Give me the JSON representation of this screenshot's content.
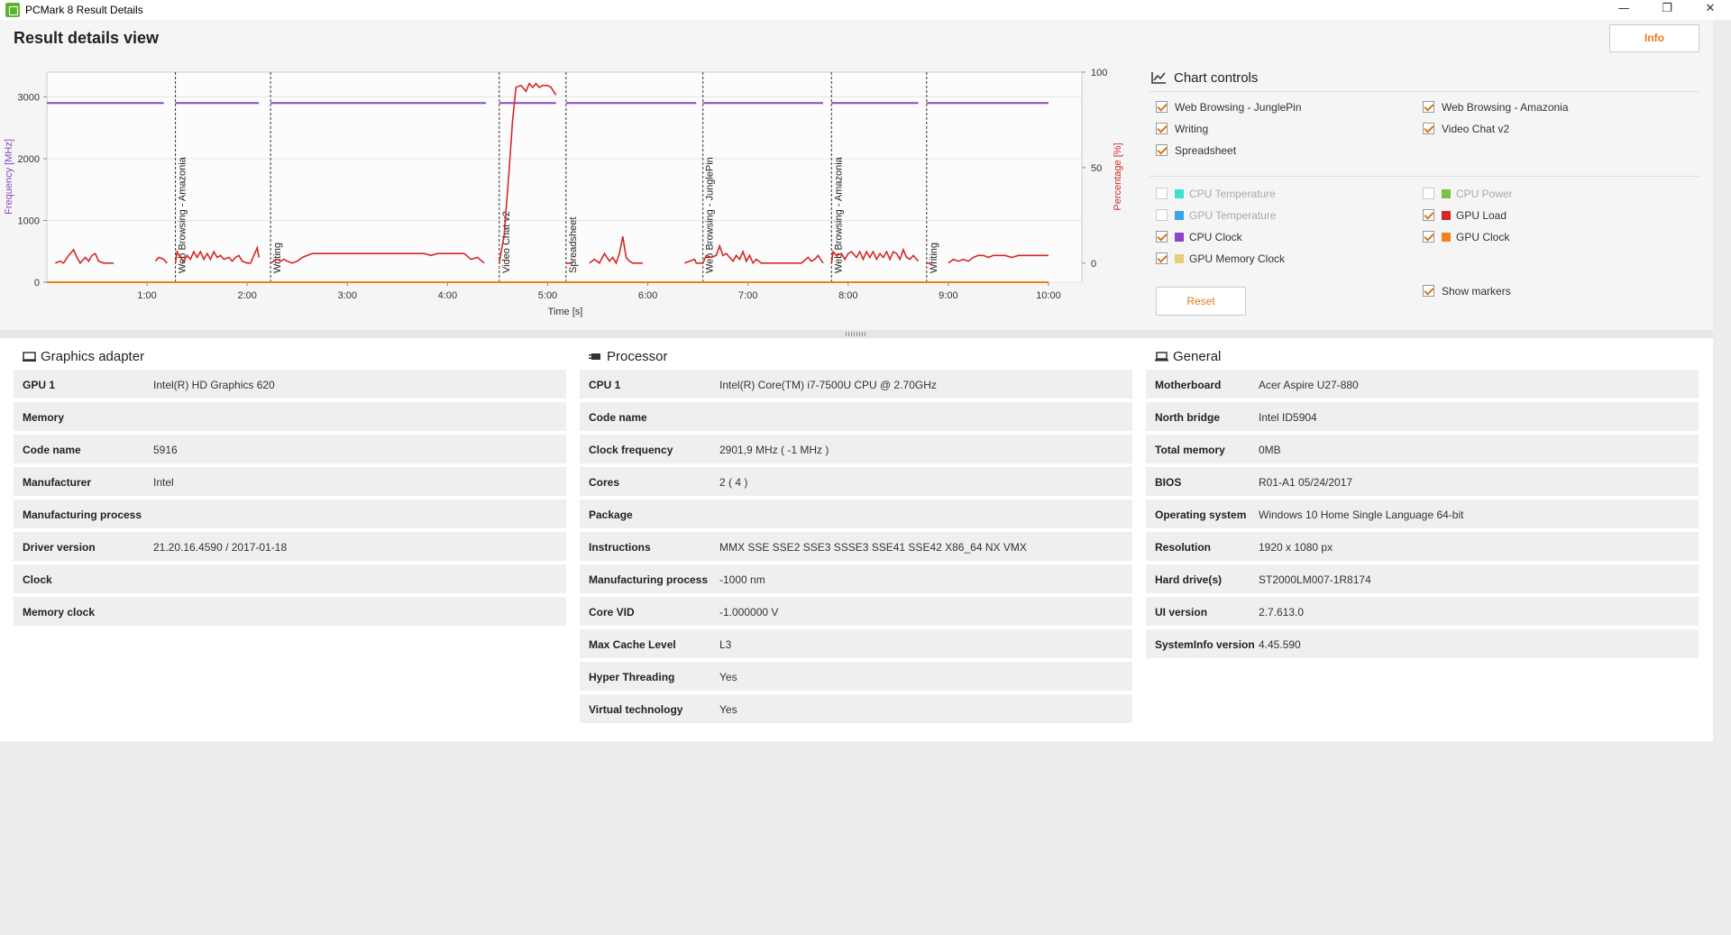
{
  "window": {
    "title": "PCMark 8 Result Details",
    "minimize_glyph": "—",
    "maximize_glyph": "❐",
    "close_glyph": "✕"
  },
  "header": {
    "title": "Result details view",
    "info_label": "Info"
  },
  "chart_data": {
    "type": "line",
    "xlabel": "Time [s]",
    "ylabel_left": "Frequency [MHz]",
    "ylabel_right": "Percentage [%]",
    "x_ticks": [
      "1:00",
      "2:00",
      "3:00",
      "4:00",
      "5:00",
      "6:00",
      "7:00",
      "8:00",
      "9:00",
      "10:00"
    ],
    "x_tick_seconds": [
      60,
      120,
      180,
      240,
      300,
      360,
      420,
      480,
      540,
      600
    ],
    "xlim_seconds": [
      0,
      620
    ],
    "y_left_ticks": [
      0,
      1000,
      2000,
      3000
    ],
    "y_left_lim": [
      0,
      3400
    ],
    "y_right_ticks": [
      0,
      50,
      100
    ],
    "y_right_lim": [
      -10,
      100
    ],
    "markers": [
      {
        "time_s": 77,
        "label": "Web Browsing - Amazonia"
      },
      {
        "time_s": 134,
        "label": "Writing"
      },
      {
        "time_s": 271,
        "label": "Video Chat v2"
      },
      {
        "time_s": 311,
        "label": "Spreadsheet"
      },
      {
        "time_s": 393,
        "label": "Web Browsing - JunglePin"
      },
      {
        "time_s": 470,
        "label": "Web Browsing - Amazonia"
      },
      {
        "time_s": 527,
        "label": "Writing"
      }
    ],
    "series": [
      {
        "name": "CPU Clock",
        "axis": "left",
        "color": "#8b44c8",
        "segments": [
          [
            0,
            70
          ],
          [
            77,
            127
          ],
          [
            134,
            263
          ],
          [
            271,
            305
          ],
          [
            311,
            389
          ],
          [
            393,
            465
          ],
          [
            470,
            522
          ],
          [
            527,
            600
          ]
        ],
        "value_mhz": 2900
      },
      {
        "name": "GPU Load",
        "axis": "right",
        "color": "#d42828",
        "points": [
          [
            0,
            0
          ],
          [
            5,
            0
          ],
          [
            8,
            1
          ],
          [
            10,
            0
          ],
          [
            13,
            4
          ],
          [
            16,
            7
          ],
          [
            18,
            3
          ],
          [
            20,
            0
          ],
          [
            23,
            3
          ],
          [
            25,
            1
          ],
          [
            27,
            4
          ],
          [
            29,
            5
          ],
          [
            31,
            1
          ],
          [
            34,
            0
          ],
          [
            37,
            0
          ],
          [
            40,
            0
          ],
          [
            45,
            0
          ],
          [
            50,
            0
          ],
          [
            55,
            0
          ],
          [
            60,
            0
          ],
          [
            65,
            1
          ],
          [
            67,
            3
          ],
          [
            70,
            2
          ],
          [
            72,
            0
          ],
          [
            77,
            0
          ],
          [
            78,
            6
          ],
          [
            80,
            3
          ],
          [
            82,
            1
          ],
          [
            84,
            4
          ],
          [
            86,
            2
          ],
          [
            88,
            6
          ],
          [
            90,
            3
          ],
          [
            92,
            6
          ],
          [
            94,
            2
          ],
          [
            96,
            5
          ],
          [
            98,
            2
          ],
          [
            100,
            6
          ],
          [
            102,
            3
          ],
          [
            104,
            4
          ],
          [
            106,
            2
          ],
          [
            109,
            3
          ],
          [
            111,
            1
          ],
          [
            113,
            3
          ],
          [
            115,
            4
          ],
          [
            117,
            1
          ],
          [
            120,
            0
          ],
          [
            122,
            0
          ],
          [
            124,
            4
          ],
          [
            126,
            8
          ],
          [
            127,
            3
          ],
          [
            134,
            0
          ],
          [
            136,
            1
          ],
          [
            138,
            2
          ],
          [
            140,
            1
          ],
          [
            142,
            2
          ],
          [
            144,
            1
          ],
          [
            147,
            0
          ],
          [
            150,
            1
          ],
          [
            153,
            3
          ],
          [
            156,
            4
          ],
          [
            159,
            5
          ],
          [
            162,
            5
          ],
          [
            166,
            5
          ],
          [
            170,
            5
          ],
          [
            174,
            5
          ],
          [
            178,
            5
          ],
          [
            182,
            5
          ],
          [
            186,
            5
          ],
          [
            190,
            5
          ],
          [
            194,
            5
          ],
          [
            198,
            5
          ],
          [
            202,
            5
          ],
          [
            206,
            5
          ],
          [
            210,
            5
          ],
          [
            214,
            5
          ],
          [
            218,
            5
          ],
          [
            222,
            5
          ],
          [
            226,
            5
          ],
          [
            230,
            4
          ],
          [
            234,
            5
          ],
          [
            238,
            5
          ],
          [
            242,
            5
          ],
          [
            246,
            5
          ],
          [
            250,
            5
          ],
          [
            254,
            2
          ],
          [
            258,
            3
          ],
          [
            262,
            0
          ],
          [
            271,
            0
          ],
          [
            274,
            15
          ],
          [
            277,
            50
          ],
          [
            279,
            75
          ],
          [
            281,
            92
          ],
          [
            284,
            93
          ],
          [
            287,
            90
          ],
          [
            289,
            94
          ],
          [
            291,
            92
          ],
          [
            293,
            94
          ],
          [
            295,
            92
          ],
          [
            297,
            93
          ],
          [
            300,
            93
          ],
          [
            302,
            92
          ],
          [
            305,
            88
          ],
          [
            311,
            0
          ],
          [
            315,
            0
          ],
          [
            320,
            0
          ],
          [
            325,
            0
          ],
          [
            328,
            2
          ],
          [
            331,
            0
          ],
          [
            334,
            5
          ],
          [
            337,
            1
          ],
          [
            339,
            3
          ],
          [
            341,
            0
          ],
          [
            343,
            5
          ],
          [
            345,
            14
          ],
          [
            347,
            3
          ],
          [
            349,
            1
          ],
          [
            351,
            0
          ],
          [
            353,
            0
          ],
          [
            357,
            0
          ],
          [
            362,
            0
          ],
          [
            367,
            0
          ],
          [
            372,
            0
          ],
          [
            377,
            0
          ],
          [
            382,
            0
          ],
          [
            385,
            1
          ],
          [
            388,
            2
          ],
          [
            389,
            0
          ],
          [
            393,
            0
          ],
          [
            395,
            4
          ],
          [
            398,
            3
          ],
          [
            401,
            4
          ],
          [
            403,
            9
          ],
          [
            405,
            4
          ],
          [
            407,
            5
          ],
          [
            409,
            3
          ],
          [
            411,
            1
          ],
          [
            413,
            4
          ],
          [
            415,
            2
          ],
          [
            417,
            6
          ],
          [
            419,
            1
          ],
          [
            421,
            4
          ],
          [
            423,
            0
          ],
          [
            425,
            2
          ],
          [
            428,
            0
          ],
          [
            432,
            0
          ],
          [
            436,
            0
          ],
          [
            440,
            0
          ],
          [
            444,
            0
          ],
          [
            448,
            0
          ],
          [
            452,
            0
          ],
          [
            456,
            3
          ],
          [
            458,
            1
          ],
          [
            460,
            2
          ],
          [
            462,
            4
          ],
          [
            465,
            0
          ],
          [
            470,
            0
          ],
          [
            471,
            6
          ],
          [
            473,
            4
          ],
          [
            476,
            5
          ],
          [
            478,
            2
          ],
          [
            480,
            5
          ],
          [
            482,
            6
          ],
          [
            485,
            3
          ],
          [
            487,
            6
          ],
          [
            489,
            2
          ],
          [
            491,
            6
          ],
          [
            493,
            3
          ],
          [
            495,
            6
          ],
          [
            497,
            2
          ],
          [
            499,
            5
          ],
          [
            501,
            3
          ],
          [
            503,
            6
          ],
          [
            505,
            2
          ],
          [
            507,
            6
          ],
          [
            509,
            5
          ],
          [
            511,
            2
          ],
          [
            513,
            7
          ],
          [
            515,
            3
          ],
          [
            517,
            2
          ],
          [
            519,
            4
          ],
          [
            522,
            1
          ],
          [
            527,
            0
          ],
          [
            530,
            0
          ],
          [
            535,
            0
          ],
          [
            540,
            0
          ],
          [
            543,
            2
          ],
          [
            546,
            1
          ],
          [
            549,
            2
          ],
          [
            552,
            1
          ],
          [
            555,
            3
          ],
          [
            558,
            4
          ],
          [
            561,
            4
          ],
          [
            564,
            3
          ],
          [
            567,
            4
          ],
          [
            570,
            4
          ],
          [
            574,
            4
          ],
          [
            578,
            3
          ],
          [
            582,
            4
          ],
          [
            586,
            4
          ],
          [
            590,
            4
          ],
          [
            594,
            4
          ],
          [
            598,
            4
          ],
          [
            600,
            4
          ]
        ]
      },
      {
        "name": "GPU Clock",
        "axis": "left",
        "color": "#f08018",
        "segments": [
          [
            0,
            600
          ]
        ],
        "value_mhz": 0
      }
    ]
  },
  "chart_controls": {
    "title": "Chart controls",
    "workloads": [
      {
        "label": "Web Browsing - JunglePin",
        "checked": true
      },
      {
        "label": "Web Browsing - Amazonia",
        "checked": true
      },
      {
        "label": "Writing",
        "checked": true
      },
      {
        "label": "Video Chat v2",
        "checked": true
      },
      {
        "label": "Spreadsheet",
        "checked": true
      }
    ],
    "metrics": [
      {
        "label": "CPU Temperature",
        "checked": false,
        "enabled": false,
        "color": "#40e0d0"
      },
      {
        "label": "CPU Power",
        "checked": false,
        "enabled": false,
        "color": "#7bc242"
      },
      {
        "label": "GPU Temperature",
        "checked": false,
        "enabled": false,
        "color": "#3aa6e8"
      },
      {
        "label": "GPU Load",
        "checked": true,
        "enabled": true,
        "color": "#d42828"
      },
      {
        "label": "CPU Clock",
        "checked": true,
        "enabled": true,
        "color": "#8b44c8"
      },
      {
        "label": "GPU Clock",
        "checked": true,
        "enabled": true,
        "color": "#f08018"
      },
      {
        "label": "GPU Memory Clock",
        "checked": true,
        "enabled": true,
        "color": "#e8cc7a"
      }
    ],
    "show_markers": {
      "label": "Show markers",
      "checked": true
    },
    "reset_label": "Reset"
  },
  "graphics": {
    "title": "Graphics adapter",
    "rows": [
      {
        "key": "GPU 1",
        "value": "Intel(R) HD Graphics 620"
      },
      {
        "key": "Memory",
        "value": ""
      },
      {
        "key": "Code name",
        "value": "5916"
      },
      {
        "key": "Manufacturer",
        "value": "Intel"
      },
      {
        "key": "Manufacturing process",
        "value": ""
      },
      {
        "key": "Driver version",
        "value": "21.20.16.4590 / 2017-01-18"
      },
      {
        "key": "Clock",
        "value": ""
      },
      {
        "key": "Memory clock",
        "value": ""
      }
    ]
  },
  "processor": {
    "title": "Processor",
    "rows": [
      {
        "key": "CPU 1",
        "value": "Intel(R) Core(TM) i7-7500U CPU @ 2.70GHz"
      },
      {
        "key": "Code name",
        "value": ""
      },
      {
        "key": "Clock frequency",
        "value": "2901,9 MHz ( -1 MHz )"
      },
      {
        "key": "Cores",
        "value": "2 ( 4 )"
      },
      {
        "key": "Package",
        "value": ""
      },
      {
        "key": "Instructions",
        "value": "MMX SSE SSE2 SSE3 SSSE3 SSE41 SSE42 X86_64 NX VMX"
      },
      {
        "key": "Manufacturing process",
        "value": "-1000 nm"
      },
      {
        "key": "Core VID",
        "value": "-1.000000 V"
      },
      {
        "key": "Max Cache Level",
        "value": "L3"
      },
      {
        "key": "Hyper Threading",
        "value": "Yes"
      },
      {
        "key": "Virtual technology",
        "value": "Yes"
      }
    ]
  },
  "general": {
    "title": "General",
    "rows": [
      {
        "key": "Motherboard",
        "value": "Acer Aspire U27-880"
      },
      {
        "key": "North bridge",
        "value": "Intel ID5904"
      },
      {
        "key": "Total memory",
        "value": "0MB"
      },
      {
        "key": "BIOS",
        "value": "R01-A1 05/24/2017"
      },
      {
        "key": "Operating system",
        "value": "Windows 10 Home Single Language 64-bit"
      },
      {
        "key": "Resolution",
        "value": "1920 x 1080 px"
      },
      {
        "key": "Hard drive(s)",
        "value": "ST2000LM007-1R8174"
      },
      {
        "key": "UI version",
        "value": "2.7.613.0"
      },
      {
        "key": "SystemInfo version",
        "value": "4.45.590"
      }
    ]
  }
}
